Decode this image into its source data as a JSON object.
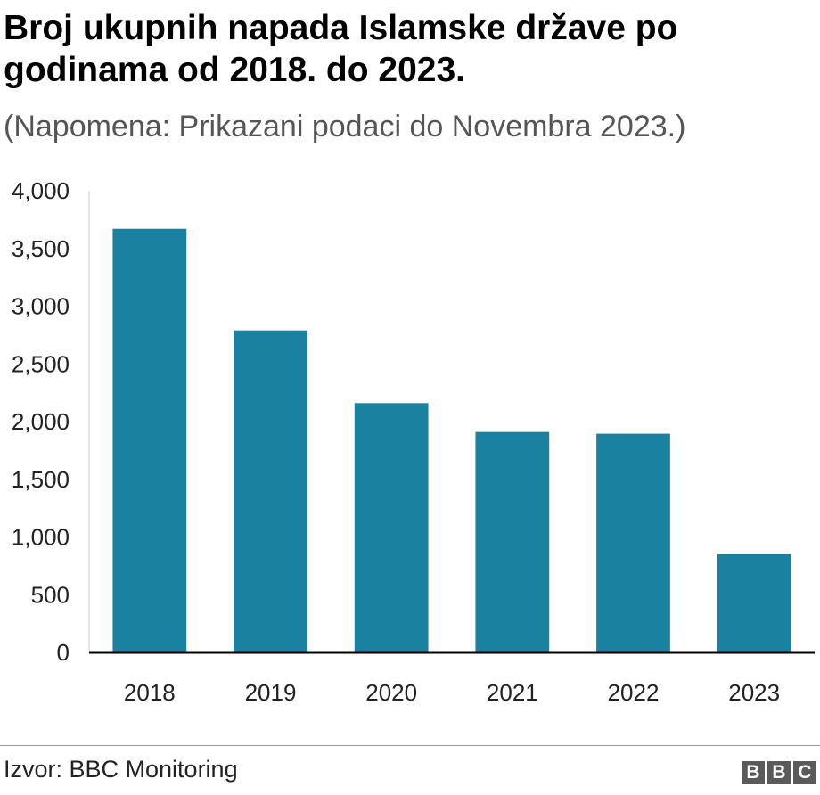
{
  "header": {
    "title": "Broj ukupnih napada Islamske države po godinama od 2018. do 2023.",
    "subtitle": "(Napomena: Prikazani podaci do Novembra 2023.)"
  },
  "footer": {
    "source": "Izvor: BBC Monitoring",
    "logo_letters": [
      "B",
      "B",
      "C"
    ]
  },
  "colors": {
    "bar": "#1a81a1",
    "axis": "#000000",
    "gridline": "#cccccc"
  },
  "chart_data": {
    "type": "bar",
    "categories": [
      "2018",
      "2019",
      "2020",
      "2021",
      "2022",
      "2023"
    ],
    "values": [
      3670,
      2790,
      2160,
      1910,
      1895,
      850
    ],
    "ylim": [
      0,
      4000
    ],
    "yticks": [
      0,
      500,
      1000,
      1500,
      2000,
      2500,
      3000,
      3500,
      4000
    ],
    "ytick_labels": [
      "0",
      "500",
      "1,000",
      "1,500",
      "2,000",
      "2,500",
      "3,000",
      "3,500",
      "4,000"
    ],
    "grid": false,
    "legend": "none"
  }
}
